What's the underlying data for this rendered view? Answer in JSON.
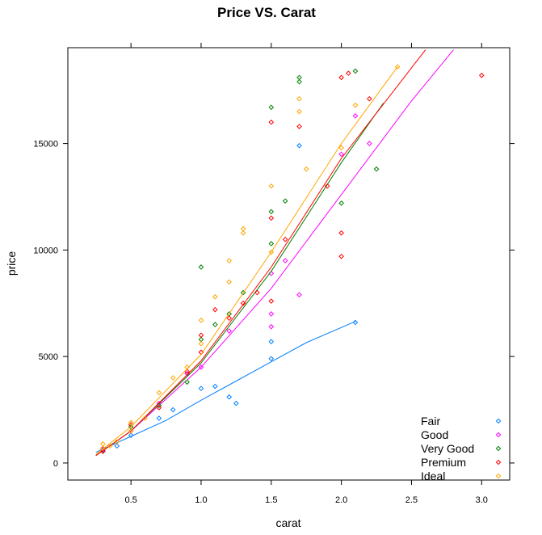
{
  "chart_data": {
    "type": "scatter",
    "title": "Price VS. Carat",
    "xlabel": "carat",
    "ylabel": "price",
    "xlim": [
      0.05,
      3.2
    ],
    "ylim": [
      -800,
      19500
    ],
    "xticks": [
      0.5,
      1.0,
      1.5,
      2.0,
      2.5,
      3.0
    ],
    "xtick_labels": [
      "0.5",
      "1.0",
      "1.5",
      "2.0",
      "2.5",
      "3.0"
    ],
    "yticks": [
      0,
      5000,
      10000,
      15000
    ],
    "ytick_labels": [
      "0",
      "5000",
      "10000",
      "15000"
    ],
    "grid": false,
    "legend_position": "bottom-right",
    "series": [
      {
        "name": "Fair",
        "color": "#0080ff",
        "points": [
          [
            0.3,
            600
          ],
          [
            0.4,
            800
          ],
          [
            0.5,
            1300
          ],
          [
            0.7,
            2100
          ],
          [
            0.8,
            2500
          ],
          [
            1.0,
            3500
          ],
          [
            1.1,
            3600
          ],
          [
            1.2,
            3100
          ],
          [
            1.25,
            2800
          ],
          [
            1.5,
            5700
          ],
          [
            1.5,
            4900
          ],
          [
            1.7,
            14900
          ],
          [
            2.1,
            6600
          ]
        ],
        "trend": [
          [
            0.25,
            500
          ],
          [
            0.5,
            1250
          ],
          [
            0.75,
            2000
          ],
          [
            1.0,
            2950
          ],
          [
            1.25,
            3850
          ],
          [
            1.5,
            4750
          ],
          [
            1.75,
            5650
          ],
          [
            2.1,
            6650
          ]
        ]
      },
      {
        "name": "Good",
        "color": "#ff00ff",
        "points": [
          [
            0.3,
            650
          ],
          [
            0.5,
            1500
          ],
          [
            0.7,
            2800
          ],
          [
            0.9,
            4200
          ],
          [
            1.0,
            5200
          ],
          [
            1.0,
            4500
          ],
          [
            1.2,
            6200
          ],
          [
            1.5,
            7000
          ],
          [
            1.5,
            8900
          ],
          [
            1.5,
            6400
          ],
          [
            1.6,
            9500
          ],
          [
            1.7,
            7900
          ],
          [
            2.0,
            14500
          ],
          [
            2.1,
            16300
          ],
          [
            2.2,
            15000
          ]
        ],
        "trend": [
          [
            0.25,
            350
          ],
          [
            0.5,
            1500
          ],
          [
            1.0,
            4500
          ],
          [
            1.5,
            8200
          ],
          [
            2.0,
            12600
          ],
          [
            2.5,
            17000
          ],
          [
            2.8,
            19400
          ]
        ]
      },
      {
        "name": "Very Good",
        "color": "#008000",
        "points": [
          [
            0.3,
            550
          ],
          [
            0.5,
            1700
          ],
          [
            0.7,
            2700
          ],
          [
            0.9,
            3800
          ],
          [
            1.0,
            9200
          ],
          [
            1.0,
            5800
          ],
          [
            1.1,
            6500
          ],
          [
            1.2,
            7000
          ],
          [
            1.3,
            8000
          ],
          [
            1.5,
            16700
          ],
          [
            1.5,
            11800
          ],
          [
            1.5,
            10300
          ],
          [
            1.6,
            12300
          ],
          [
            1.7,
            18100
          ],
          [
            1.7,
            17900
          ],
          [
            2.0,
            12200
          ],
          [
            2.1,
            18400
          ],
          [
            2.25,
            13800
          ]
        ],
        "trend": [
          [
            0.25,
            350
          ],
          [
            0.5,
            1500
          ],
          [
            1.0,
            4700
          ],
          [
            1.5,
            9000
          ],
          [
            2.0,
            14100
          ],
          [
            2.3,
            16900
          ]
        ]
      },
      {
        "name": "Premium",
        "color": "#ff0000",
        "points": [
          [
            0.3,
            550
          ],
          [
            0.5,
            1800
          ],
          [
            0.7,
            2600
          ],
          [
            0.9,
            4300
          ],
          [
            1.0,
            6000
          ],
          [
            1.0,
            5200
          ],
          [
            1.1,
            7200
          ],
          [
            1.2,
            6800
          ],
          [
            1.3,
            7500
          ],
          [
            1.4,
            8000
          ],
          [
            1.5,
            16000
          ],
          [
            1.5,
            11500
          ],
          [
            1.5,
            7600
          ],
          [
            1.6,
            10500
          ],
          [
            1.7,
            15800
          ],
          [
            1.9,
            13000
          ],
          [
            2.0,
            9700
          ],
          [
            2.0,
            10800
          ],
          [
            2.0,
            18100
          ],
          [
            2.05,
            18300
          ],
          [
            2.2,
            17100
          ],
          [
            3.0,
            18200
          ]
        ],
        "trend": [
          [
            0.25,
            350
          ],
          [
            0.5,
            1500
          ],
          [
            1.0,
            4800
          ],
          [
            1.5,
            9200
          ],
          [
            2.0,
            14300
          ],
          [
            2.6,
            19400
          ]
        ]
      },
      {
        "name": "Ideal",
        "color": "#ffa500",
        "points": [
          [
            0.3,
            700
          ],
          [
            0.3,
            900
          ],
          [
            0.35,
            800
          ],
          [
            0.4,
            1000
          ],
          [
            0.5,
            1900
          ],
          [
            0.5,
            1500
          ],
          [
            0.6,
            2100
          ],
          [
            0.7,
            3300
          ],
          [
            0.8,
            4000
          ],
          [
            0.9,
            4500
          ],
          [
            1.0,
            6700
          ],
          [
            1.0,
            5600
          ],
          [
            1.1,
            7800
          ],
          [
            1.2,
            8500
          ],
          [
            1.2,
            9500
          ],
          [
            1.3,
            10800
          ],
          [
            1.3,
            11000
          ],
          [
            1.5,
            13000
          ],
          [
            1.5,
            9900
          ],
          [
            1.7,
            17100
          ],
          [
            1.7,
            16500
          ],
          [
            1.75,
            13800
          ],
          [
            2.0,
            14800
          ],
          [
            2.1,
            16800
          ],
          [
            2.4,
            18600
          ]
        ],
        "trend": [
          [
            0.25,
            400
          ],
          [
            0.5,
            1700
          ],
          [
            1.0,
            5100
          ],
          [
            1.5,
            9900
          ],
          [
            2.0,
            15000
          ],
          [
            2.4,
            18600
          ]
        ]
      }
    ]
  }
}
